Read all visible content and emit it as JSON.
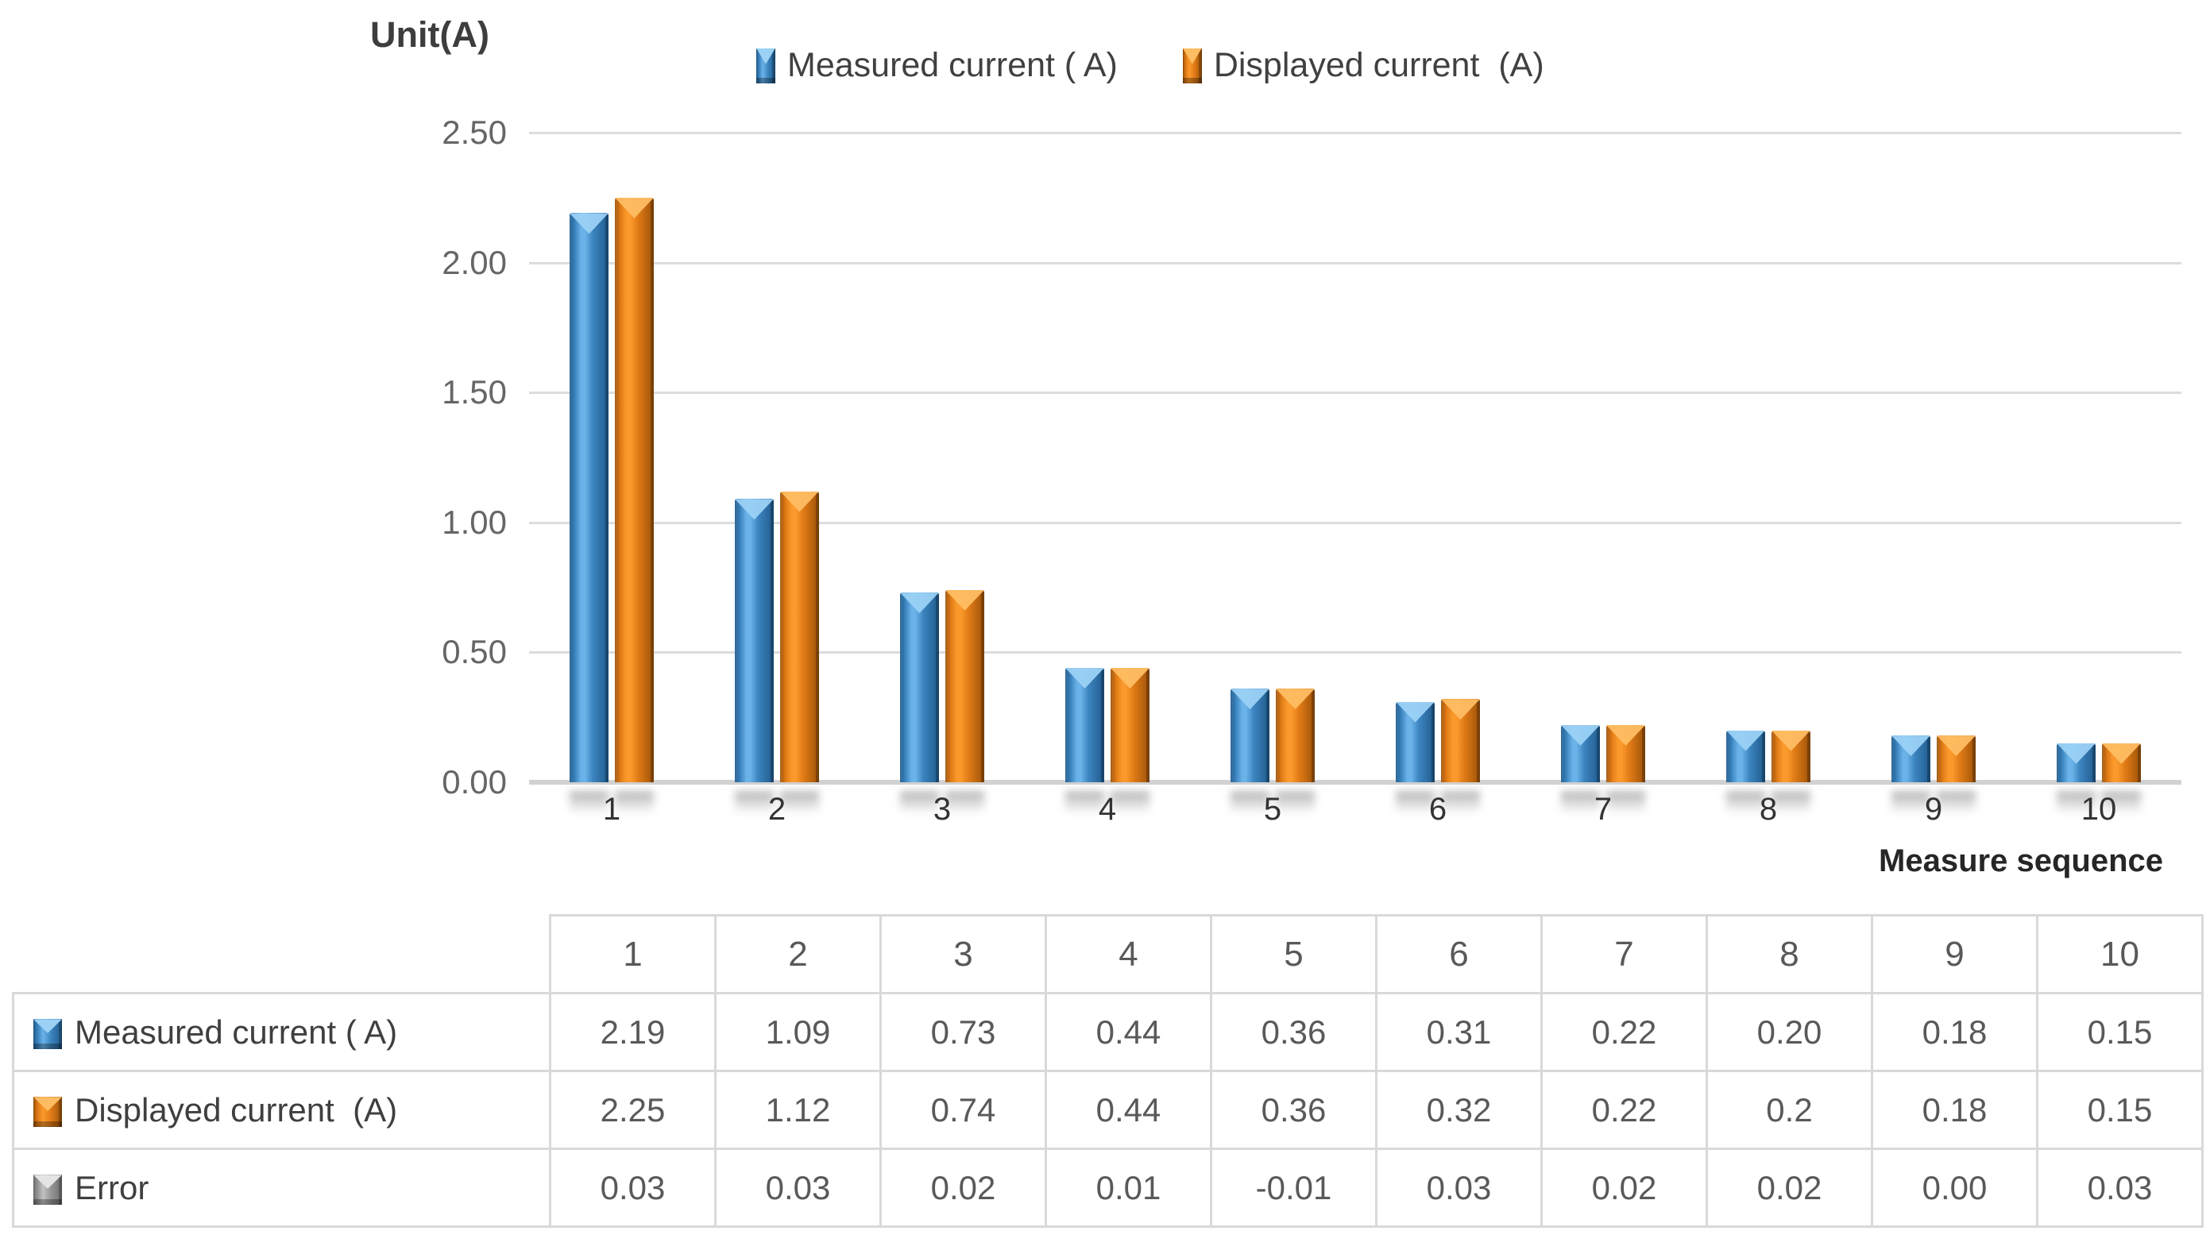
{
  "chart": {
    "y_axis_title": "Unit(A)",
    "x_axis_title": "Measure sequence",
    "y_ticks": [
      "2.50",
      "2.00",
      "1.50",
      "1.00",
      "0.50",
      "0.00"
    ]
  },
  "chart_data": {
    "type": "bar",
    "title": "",
    "categories": [
      "1",
      "2",
      "3",
      "4",
      "5",
      "6",
      "7",
      "8",
      "9",
      "10"
    ],
    "series": [
      {
        "name": "Measured current ( A)",
        "key": "measured",
        "color": "#3c84bf",
        "values": [
          2.19,
          1.09,
          0.73,
          0.44,
          0.36,
          0.31,
          0.22,
          0.2,
          0.18,
          0.15
        ]
      },
      {
        "name": "Displayed current  (A)",
        "key": "displayed",
        "color": "#e07a16",
        "values": [
          2.25,
          1.12,
          0.74,
          0.44,
          0.36,
          0.32,
          0.22,
          0.2,
          0.18,
          0.15
        ]
      }
    ],
    "xlabel": "Measure sequence",
    "ylabel": "Unit(A)",
    "ylim": [
      0,
      2.5
    ],
    "ytick_step": 0.5,
    "grid": true,
    "legend_position": "top"
  },
  "table": {
    "corner_label": "",
    "header": [
      "1",
      "2",
      "3",
      "4",
      "5",
      "6",
      "7",
      "8",
      "9",
      "10"
    ],
    "rows": [
      {
        "label": "Measured current ( A)",
        "icon": "measured-series-swatch-icon",
        "series_key": "measured",
        "values": [
          "2.19",
          "1.09",
          "0.73",
          "0.44",
          "0.36",
          "0.31",
          "0.22",
          "0.20",
          "0.18",
          "0.15"
        ]
      },
      {
        "label": "Displayed current  (A)",
        "icon": "displayed-series-swatch-icon",
        "series_key": "displayed",
        "values": [
          "2.25",
          "1.12",
          "0.74",
          "0.44",
          "0.36",
          "0.32",
          "0.22",
          "0.2",
          "0.18",
          "0.15"
        ]
      },
      {
        "label": "Error",
        "icon": "error-series-swatch-icon",
        "series_key": "error",
        "values": [
          "0.03",
          "0.03",
          "0.02",
          "0.01",
          "-0.01",
          "0.03",
          "0.02",
          "0.02",
          "0.00",
          "0.03"
        ]
      }
    ]
  },
  "colors": {
    "measured": "#3c84bf",
    "displayed": "#e07a16",
    "error": "#959595",
    "gridline": "#dcdcdc",
    "axis_line": "#d2d2d2",
    "table_border": "#d9d9d9"
  }
}
